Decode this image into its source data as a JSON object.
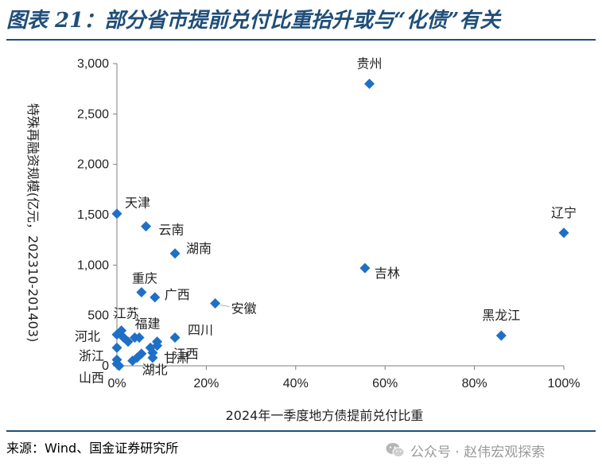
{
  "figure": {
    "title": "图表 21：部分省市提前兑付比重抬升或与“化债”有关",
    "source": "来源：Wind、国金证券研究所",
    "watermark": "公众号 · 赵伟宏观探索"
  },
  "colors": {
    "marker": "#1f6fc7",
    "title": "#1f4e79",
    "axis": "#7f7f7f"
  },
  "chart_data": {
    "type": "scatter",
    "xlabel": "2024年一季度地方债提前兑付比重",
    "ylabel": "特殊再融资规模(亿元，202310-201403)",
    "xlim": [
      0,
      1.0
    ],
    "ylim": [
      0,
      3000
    ],
    "x_ticks": [
      0,
      0.2,
      0.4,
      0.6,
      0.8,
      1.0
    ],
    "x_tick_labels": [
      "0%",
      "20%",
      "40%",
      "60%",
      "80%",
      "100%"
    ],
    "y_ticks": [
      0,
      500,
      1000,
      1500,
      2000,
      2500,
      3000
    ],
    "y_tick_labels": [
      "0",
      "500",
      "1,000",
      "1,500",
      "2,000",
      "2,500",
      "3,000"
    ],
    "grid": false,
    "marker": "diamond",
    "points": [
      {
        "name": "贵州",
        "x": 0.565,
        "y": 2800,
        "label": true
      },
      {
        "name": "辽宁",
        "x": 1.0,
        "y": 1320,
        "label": true
      },
      {
        "name": "天津",
        "x": 0.0,
        "y": 1510,
        "label": true
      },
      {
        "name": "云南",
        "x": 0.065,
        "y": 1385,
        "label": true
      },
      {
        "name": "湖南",
        "x": 0.13,
        "y": 1115,
        "label": true
      },
      {
        "name": "吉林",
        "x": 0.555,
        "y": 970,
        "label": true
      },
      {
        "name": "重庆",
        "x": 0.055,
        "y": 730,
        "label": true
      },
      {
        "name": "广西",
        "x": 0.085,
        "y": 680,
        "label": true
      },
      {
        "name": "安徽",
        "x": 0.22,
        "y": 620,
        "label": true
      },
      {
        "name": "黑龙江",
        "x": 0.86,
        "y": 300,
        "label": true
      },
      {
        "name": "四川",
        "x": 0.13,
        "y": 280,
        "label": true
      },
      {
        "name": "江苏",
        "x": 0.01,
        "y": 350,
        "label": true
      },
      {
        "name": "福建",
        "x": 0.04,
        "y": 280,
        "label": true
      },
      {
        "name": "河北",
        "x": 0.0,
        "y": 310,
        "label": true
      },
      {
        "name": "浙江",
        "x": 0.0,
        "y": 180,
        "label": true
      },
      {
        "name": "江西",
        "x": 0.09,
        "y": 200,
        "label": true
      },
      {
        "name": "甘肃",
        "x": 0.08,
        "y": 130,
        "label": true
      },
      {
        "name": "湖北",
        "x": 0.035,
        "y": 50,
        "label": true
      },
      {
        "name": "山西",
        "x": 0.0,
        "y": 20,
        "label": true
      },
      {
        "name": "",
        "x": 0.015,
        "y": 280,
        "label": false
      },
      {
        "name": "",
        "x": 0.025,
        "y": 240,
        "label": false
      },
      {
        "name": "",
        "x": 0.05,
        "y": 280,
        "label": false
      },
      {
        "name": "",
        "x": 0.055,
        "y": 120,
        "label": false
      },
      {
        "name": "",
        "x": 0.075,
        "y": 180,
        "label": false
      },
      {
        "name": "",
        "x": 0.09,
        "y": 240,
        "label": false
      },
      {
        "name": "",
        "x": 0.045,
        "y": 80,
        "label": false
      },
      {
        "name": "",
        "x": 0.0,
        "y": 60,
        "label": false
      },
      {
        "name": "",
        "x": 0.005,
        "y": 0,
        "label": false
      },
      {
        "name": "",
        "x": 0.08,
        "y": 80,
        "label": false
      }
    ]
  }
}
